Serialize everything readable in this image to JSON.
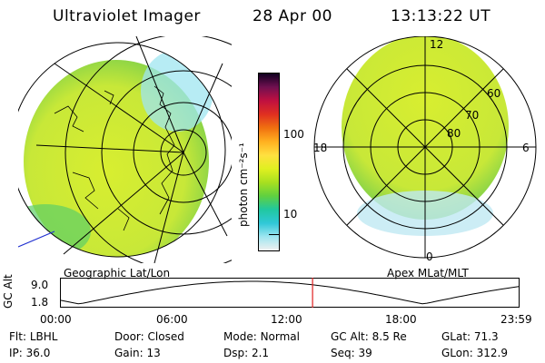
{
  "header": {
    "title": "Ultraviolet Imager",
    "date": "28 Apr 00",
    "time": "13:13:22 UT"
  },
  "left_map": {
    "caption": "Geographic Lat/Lon"
  },
  "right_map": {
    "caption": "Apex MLat/MLT",
    "mlt_labels": {
      "top": "12",
      "left": "18",
      "right": "6",
      "bottom": "0"
    },
    "lat_labels": [
      "60",
      "70",
      "80"
    ]
  },
  "colorbar": {
    "unit_label": "photon cm⁻²s⁻¹",
    "ticks": [
      "100",
      "10"
    ],
    "scale": "log",
    "colors": [
      "#f0f0f0",
      "#9fe6f0",
      "#30c8d8",
      "#20c8a0",
      "#60d040",
      "#a8e020",
      "#e0f020",
      "#ffe040",
      "#ffb020",
      "#f07010",
      "#e03020",
      "#c01040",
      "#701050",
      "#100020"
    ]
  },
  "timeline": {
    "axis_label": "GC Alt",
    "y_ticks": [
      "9.0",
      "1.8"
    ],
    "x_ticks": [
      "00:00",
      "06:00",
      "12:00",
      "18:00",
      "23:59"
    ],
    "current_marker_time": "13:13",
    "marker_color": "#e02020"
  },
  "status": {
    "row1": [
      {
        "label": "Flt:",
        "value": "LBHL"
      },
      {
        "label": "Door:",
        "value": "Closed"
      },
      {
        "label": "Mode:",
        "value": "Normal"
      },
      {
        "label": "GC Alt:",
        "value": "8.5 Re"
      },
      {
        "label": "GLat:",
        "value": "71.3"
      }
    ],
    "row2": [
      {
        "label": "IP:",
        "value": "36.0"
      },
      {
        "label": "Gain:",
        "value": "13"
      },
      {
        "label": "Dsp:",
        "value": "2.1"
      },
      {
        "label": "Seq:",
        "value": "39"
      },
      {
        "label": "GLon:",
        "value": "312.9"
      }
    ]
  }
}
